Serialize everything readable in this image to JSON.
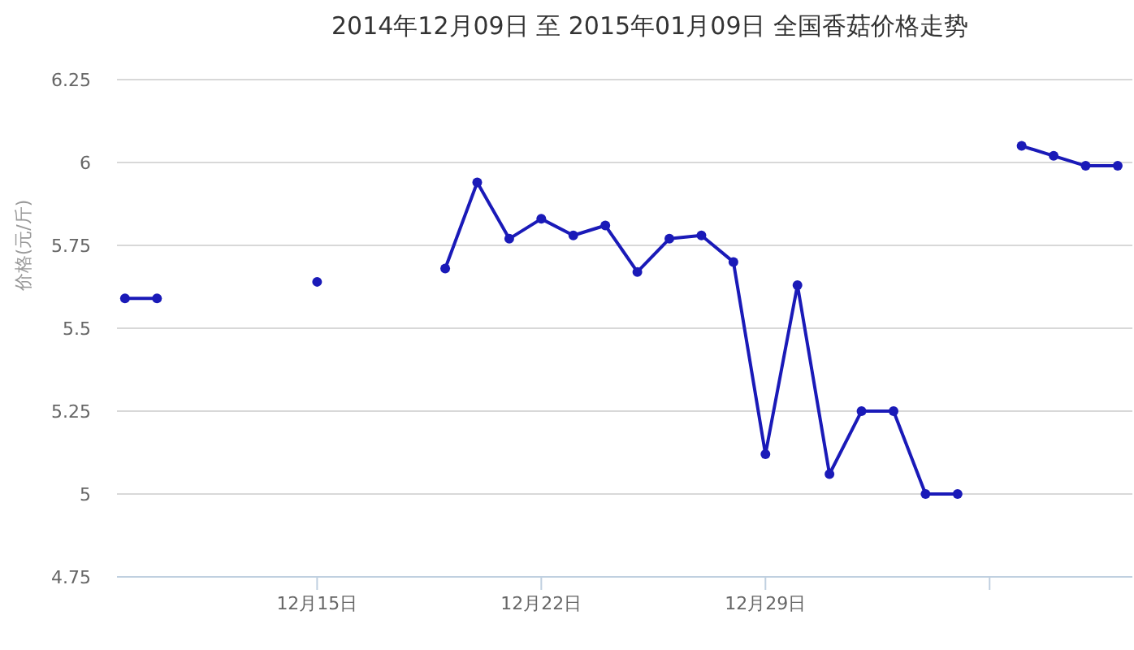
{
  "chart_data": {
    "type": "line",
    "title": "2014年12月09日 至 2015年01月09日 全国香菇价格走势",
    "ylabel": "价格(元/斤)",
    "x": [
      "2014-12-09",
      "2014-12-10",
      "2014-12-11",
      "2014-12-12",
      "2014-12-13",
      "2014-12-14",
      "2014-12-15",
      "2014-12-16",
      "2014-12-17",
      "2014-12-18",
      "2014-12-19",
      "2014-12-20",
      "2014-12-21",
      "2014-12-22",
      "2014-12-23",
      "2014-12-24",
      "2014-12-25",
      "2014-12-26",
      "2014-12-27",
      "2014-12-28",
      "2014-12-29",
      "2014-12-30",
      "2014-12-31",
      "2015-01-01",
      "2015-01-02",
      "2015-01-03",
      "2015-01-04",
      "2015-01-05",
      "2015-01-06",
      "2015-01-07",
      "2015-01-08",
      "2015-01-09"
    ],
    "series": [
      {
        "color": "#1a1ab8",
        "values": [
          5.59,
          5.59,
          null,
          null,
          null,
          null,
          5.64,
          null,
          null,
          null,
          5.68,
          5.94,
          5.77,
          5.83,
          5.78,
          5.81,
          5.67,
          5.77,
          5.78,
          5.7,
          5.12,
          5.63,
          5.06,
          5.25,
          5.25,
          5.0,
          5.0,
          null,
          6.05,
          6.02,
          5.99,
          5.99
        ]
      }
    ],
    "xlim": [
      "2014-12-08T18:00",
      "2015-01-09T11:00"
    ],
    "xticks": [
      {
        "value": "2014-12-15",
        "label": "12月15日"
      },
      {
        "value": "2014-12-22",
        "label": "12月22日"
      },
      {
        "value": "2014-12-29",
        "label": "12月29日"
      },
      {
        "value": "2015-01-05",
        "label": null
      }
    ],
    "ylim": [
      4.75,
      6.25
    ],
    "yticks": [
      4.75,
      5,
      5.25,
      5.5,
      5.75,
      6,
      6.25
    ],
    "grid": "y",
    "marker": "circle",
    "line_style": "solid"
  }
}
